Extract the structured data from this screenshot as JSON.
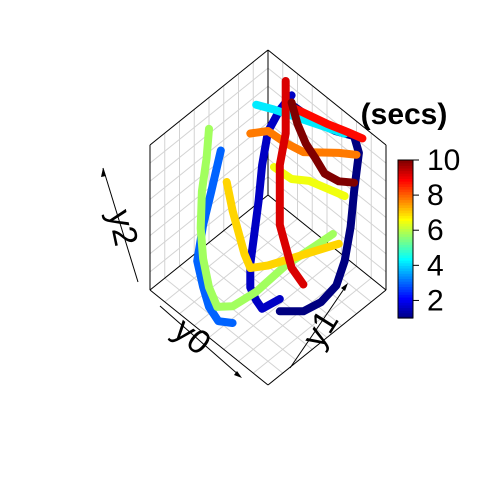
{
  "chart_data": {
    "type": "line",
    "projection": "3d-box",
    "axes": {
      "x": {
        "label": "y0"
      },
      "y": {
        "label": "y1"
      },
      "z": {
        "label": "y2"
      }
    },
    "color_axis": {
      "title": "(secs)",
      "range": [
        1,
        10
      ],
      "ticks": [
        "2",
        "4",
        "6",
        "8",
        "10"
      ],
      "palette": "jet"
    },
    "series": [
      {
        "color_value": 1.0,
        "points": [
          [
            0.35,
            0.85,
            0.95
          ],
          [
            0.5,
            0.9,
            0.9
          ],
          [
            0.65,
            0.92,
            0.92
          ],
          [
            0.78,
            0.95,
            0.95
          ],
          [
            0.85,
            0.92,
            0.9
          ],
          [
            0.88,
            0.85,
            0.7
          ],
          [
            0.9,
            0.8,
            0.5
          ],
          [
            0.9,
            0.75,
            0.3
          ],
          [
            0.88,
            0.7,
            0.15
          ],
          [
            0.85,
            0.6,
            0.08
          ],
          [
            0.8,
            0.5,
            0.05
          ],
          [
            0.7,
            0.4,
            0.05
          ]
        ]
      },
      {
        "color_value": 1.6,
        "points": [
          [
            0.3,
            0.9,
            0.95
          ],
          [
            0.25,
            0.85,
            0.85
          ],
          [
            0.2,
            0.8,
            0.7
          ],
          [
            0.2,
            0.75,
            0.5
          ],
          [
            0.22,
            0.7,
            0.3
          ],
          [
            0.28,
            0.6,
            0.15
          ],
          [
            0.35,
            0.5,
            0.08
          ],
          [
            0.45,
            0.4,
            0.05
          ],
          [
            0.55,
            0.35,
            0.06
          ],
          [
            0.65,
            0.3,
            0.1
          ],
          [
            0.75,
            0.35,
            0.2
          ]
        ]
      },
      {
        "color_value": 3.0,
        "points": [
          [
            0.1,
            0.5,
            0.7
          ],
          [
            0.12,
            0.4,
            0.5
          ],
          [
            0.15,
            0.3,
            0.35
          ],
          [
            0.2,
            0.2,
            0.2
          ],
          [
            0.3,
            0.15,
            0.12
          ],
          [
            0.4,
            0.1,
            0.08
          ],
          [
            0.5,
            0.08,
            0.06
          ],
          [
            0.6,
            0.1,
            0.1
          ]
        ]
      },
      {
        "color_value": 4.2,
        "points": [
          [
            0.2,
            0.7,
            0.95
          ],
          [
            0.3,
            0.75,
            0.95
          ],
          [
            0.45,
            0.8,
            0.96
          ],
          [
            0.6,
            0.85,
            0.97
          ],
          [
            0.75,
            0.9,
            0.98
          ]
        ]
      },
      {
        "color_value": 5.8,
        "points": [
          [
            0.05,
            0.45,
            0.85
          ],
          [
            0.08,
            0.4,
            0.7
          ],
          [
            0.12,
            0.32,
            0.55
          ],
          [
            0.18,
            0.25,
            0.38
          ],
          [
            0.25,
            0.2,
            0.25
          ],
          [
            0.35,
            0.15,
            0.15
          ],
          [
            0.45,
            0.12,
            0.1
          ],
          [
            0.55,
            0.15,
            0.15
          ],
          [
            0.65,
            0.25,
            0.25
          ],
          [
            0.75,
            0.4,
            0.4
          ],
          [
            0.85,
            0.55,
            0.5
          ],
          [
            0.9,
            0.65,
            0.55
          ]
        ]
      },
      {
        "color_value": 6.5,
        "points": [
          [
            0.45,
            0.6,
            0.75
          ],
          [
            0.55,
            0.65,
            0.7
          ],
          [
            0.65,
            0.7,
            0.72
          ],
          [
            0.75,
            0.75,
            0.7
          ],
          [
            0.85,
            0.8,
            0.68
          ]
        ]
      },
      {
        "color_value": 7.0,
        "points": [
          [
            0.1,
            0.55,
            0.45
          ],
          [
            0.2,
            0.5,
            0.35
          ],
          [
            0.3,
            0.45,
            0.3
          ],
          [
            0.4,
            0.4,
            0.25
          ],
          [
            0.5,
            0.35,
            0.25
          ],
          [
            0.6,
            0.4,
            0.3
          ],
          [
            0.7,
            0.5,
            0.35
          ],
          [
            0.8,
            0.6,
            0.4
          ],
          [
            0.9,
            0.7,
            0.45
          ]
        ]
      },
      {
        "color_value": 7.8,
        "points": [
          [
            0.25,
            0.6,
            0.85
          ],
          [
            0.35,
            0.65,
            0.9
          ],
          [
            0.45,
            0.7,
            0.85
          ],
          [
            0.55,
            0.75,
            0.82
          ],
          [
            0.65,
            0.8,
            0.85
          ],
          [
            0.75,
            0.85,
            0.88
          ],
          [
            0.85,
            0.9,
            0.9
          ]
        ]
      },
      {
        "color_value": 8.8,
        "points": [
          [
            0.3,
            0.85,
            0.92
          ],
          [
            0.45,
            0.88,
            0.93
          ],
          [
            0.6,
            0.9,
            0.95
          ],
          [
            0.75,
            0.92,
            0.98
          ],
          [
            0.85,
            0.95,
            0.98
          ]
        ]
      },
      {
        "color_value": 9.2,
        "points": [
          [
            0.2,
            0.95,
            0.95
          ],
          [
            0.25,
            0.9,
            0.85
          ],
          [
            0.3,
            0.85,
            0.72
          ],
          [
            0.35,
            0.75,
            0.6
          ],
          [
            0.45,
            0.65,
            0.5
          ],
          [
            0.55,
            0.55,
            0.45
          ],
          [
            0.65,
            0.5,
            0.4
          ],
          [
            0.75,
            0.45,
            0.35
          ],
          [
            0.85,
            0.45,
            0.3
          ]
        ]
      },
      {
        "color_value": 10.0,
        "points": [
          [
            0.3,
            0.9,
            0.9
          ],
          [
            0.4,
            0.85,
            0.85
          ],
          [
            0.5,
            0.82,
            0.8
          ],
          [
            0.6,
            0.8,
            0.78
          ],
          [
            0.7,
            0.78,
            0.75
          ],
          [
            0.8,
            0.8,
            0.75
          ],
          [
            0.88,
            0.85,
            0.76
          ]
        ]
      }
    ]
  }
}
